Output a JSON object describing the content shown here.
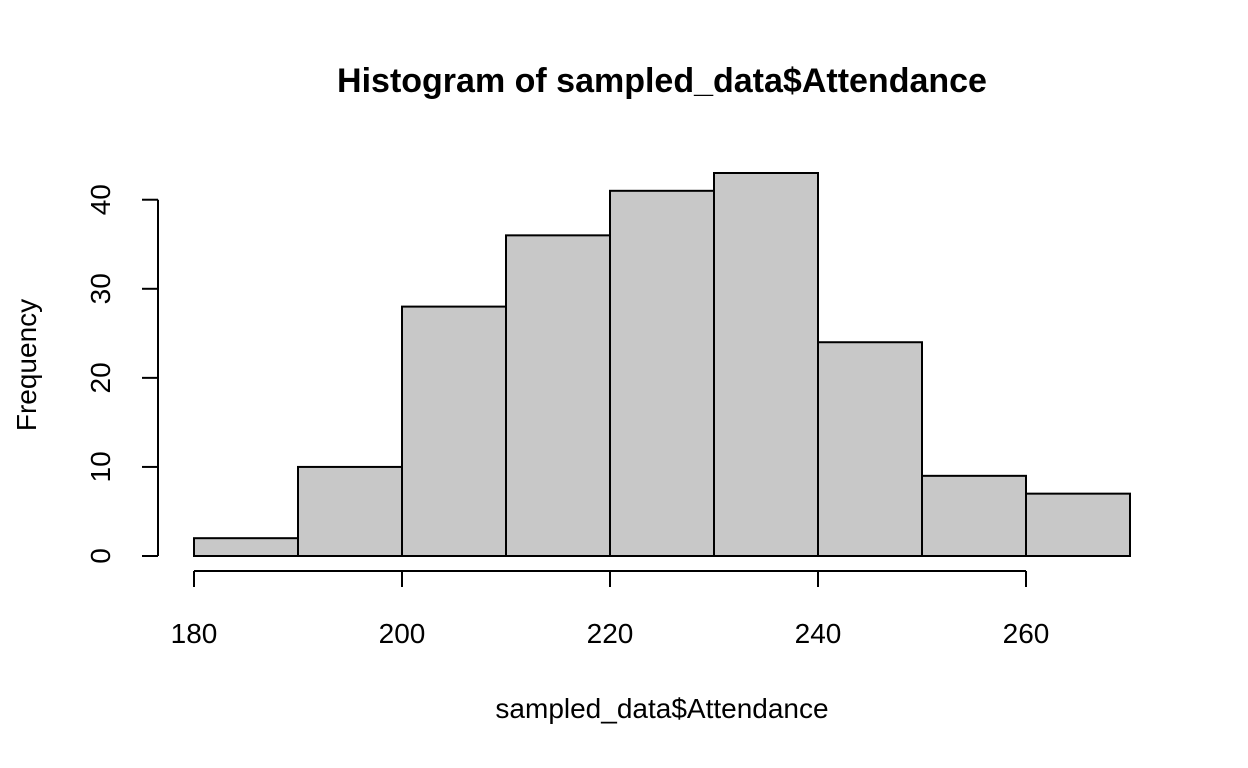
{
  "chart_data": {
    "type": "bar",
    "title": "Histogram of sampled_data$Attendance",
    "xlabel": "sampled_data$Attendance",
    "ylabel": "Frequency",
    "bins": [
      {
        "start": 180,
        "end": 190,
        "count": 2
      },
      {
        "start": 190,
        "end": 200,
        "count": 10
      },
      {
        "start": 200,
        "end": 210,
        "count": 28
      },
      {
        "start": 210,
        "end": 220,
        "count": 36
      },
      {
        "start": 220,
        "end": 230,
        "count": 41
      },
      {
        "start": 230,
        "end": 240,
        "count": 43
      },
      {
        "start": 240,
        "end": 250,
        "count": 24
      },
      {
        "start": 250,
        "end": 260,
        "count": 9
      },
      {
        "start": 260,
        "end": 270,
        "count": 7
      }
    ],
    "xlim": [
      180,
      270
    ],
    "ylim": [
      0,
      43
    ],
    "x_ticks": [
      180,
      200,
      220,
      240,
      260
    ],
    "y_ticks": [
      0,
      10,
      20,
      30,
      40
    ],
    "bar_color": "#c8c8c8",
    "edge_color": "#000000",
    "grid": false
  }
}
